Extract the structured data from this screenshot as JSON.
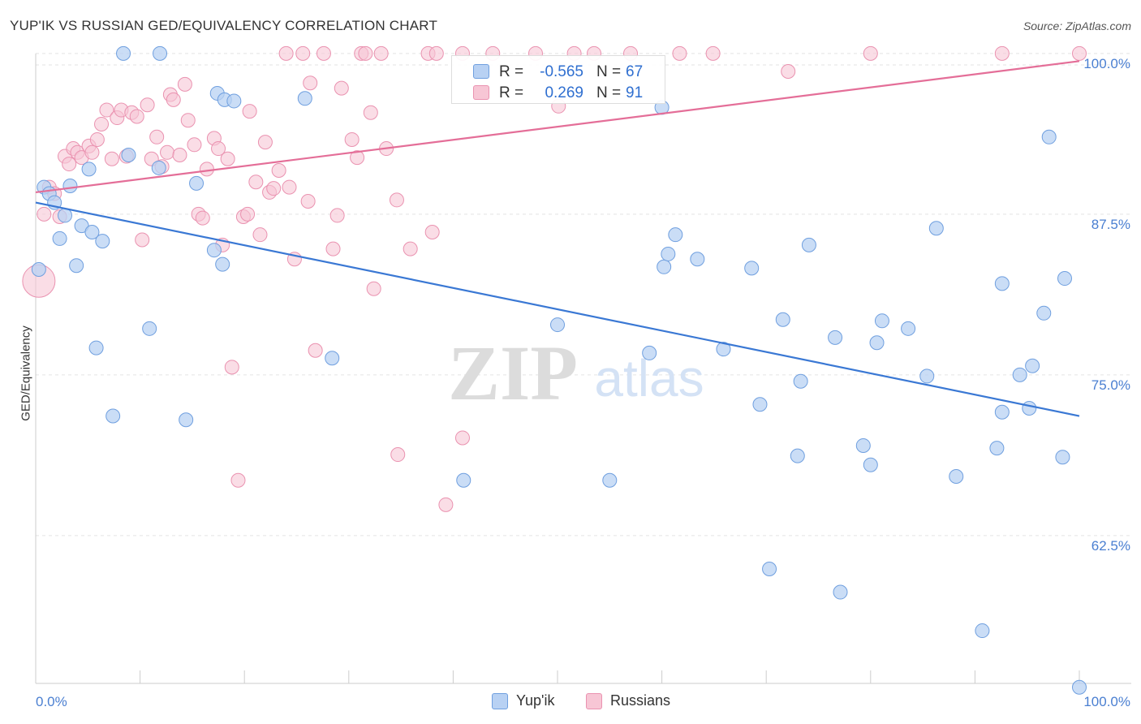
{
  "header": {
    "title": "YUP'IK VS RUSSIAN GED/EQUIVALENCY CORRELATION CHART",
    "source": "Source: ZipAtlas.com"
  },
  "legend": {
    "r_label": "R =",
    "n_label": "N =",
    "rows": [
      {
        "r": "-0.565",
        "n": "67"
      },
      {
        "r": "0.269",
        "n": "91"
      }
    ]
  },
  "colors": {
    "yupik_fill": "#b8d1f3",
    "yupik_stroke": "#6f9fdf",
    "yupik_line": "#3a78d4",
    "russian_fill": "#f7c6d5",
    "russian_stroke": "#ea92b0",
    "russian_line": "#e46e98",
    "tick_label": "#4a7fd1",
    "grid": "#e3e3e3",
    "watermark": "#dcdcdc"
  },
  "watermark": {
    "zip": "ZIP",
    "atlas": "atlas"
  },
  "chart_data": {
    "type": "scatter",
    "title": "YUP'IK VS RUSSIAN GED/EQUIVALENCY CORRELATION CHART",
    "xlabel": "",
    "ylabel": "GED/Equivalency",
    "xlim": [
      0,
      100
    ],
    "ylim": [
      51,
      101
    ],
    "x_tick_labels": [
      "0.0%",
      "100.0%"
    ],
    "y_ticks": [
      62.5,
      75.0,
      87.5,
      100.0
    ],
    "y_tick_labels": [
      "62.5%",
      "75.0%",
      "87.5%",
      "100.0%"
    ],
    "grid": "horizontal dashed",
    "legend_position": "top-center",
    "series": [
      {
        "name": "Yup'ik",
        "color": "#b8d1f3",
        "trend": {
          "x": [
            0,
            100
          ],
          "y": [
            88.4,
            71.8
          ]
        },
        "points": [
          {
            "x": 0.3,
            "y": 83.2
          },
          {
            "x": 0.8,
            "y": 89.6
          },
          {
            "x": 1.3,
            "y": 89.1
          },
          {
            "x": 1.8,
            "y": 88.4
          },
          {
            "x": 2.3,
            "y": 85.6
          },
          {
            "x": 2.8,
            "y": 87.4
          },
          {
            "x": 3.3,
            "y": 89.7
          },
          {
            "x": 3.9,
            "y": 83.5
          },
          {
            "x": 4.4,
            "y": 86.6
          },
          {
            "x": 5.1,
            "y": 91.0
          },
          {
            "x": 5.4,
            "y": 86.1
          },
          {
            "x": 5.8,
            "y": 77.1
          },
          {
            "x": 6.4,
            "y": 85.4
          },
          {
            "x": 7.4,
            "y": 71.8
          },
          {
            "x": 8.4,
            "y": 100.0
          },
          {
            "x": 8.9,
            "y": 92.1
          },
          {
            "x": 10.9,
            "y": 78.6
          },
          {
            "x": 11.9,
            "y": 100.0
          },
          {
            "x": 11.8,
            "y": 91.1
          },
          {
            "x": 14.4,
            "y": 71.5
          },
          {
            "x": 15.4,
            "y": 89.9
          },
          {
            "x": 17.1,
            "y": 84.7
          },
          {
            "x": 17.4,
            "y": 96.9
          },
          {
            "x": 17.9,
            "y": 83.6
          },
          {
            "x": 18.1,
            "y": 96.4
          },
          {
            "x": 19.0,
            "y": 96.3
          },
          {
            "x": 25.8,
            "y": 96.5
          },
          {
            "x": 28.4,
            "y": 76.3
          },
          {
            "x": 41.0,
            "y": 66.8
          },
          {
            "x": 50.0,
            "y": 78.9
          },
          {
            "x": 55.0,
            "y": 66.8
          },
          {
            "x": 58.8,
            "y": 76.7
          },
          {
            "x": 60.0,
            "y": 95.8
          },
          {
            "x": 60.2,
            "y": 83.4
          },
          {
            "x": 60.6,
            "y": 84.4
          },
          {
            "x": 61.3,
            "y": 85.9
          },
          {
            "x": 63.4,
            "y": 84.0
          },
          {
            "x": 65.9,
            "y": 77.0
          },
          {
            "x": 68.6,
            "y": 83.3
          },
          {
            "x": 69.4,
            "y": 72.7
          },
          {
            "x": 70.3,
            "y": 59.9
          },
          {
            "x": 71.6,
            "y": 79.3
          },
          {
            "x": 73.0,
            "y": 68.7
          },
          {
            "x": 73.3,
            "y": 74.5
          },
          {
            "x": 74.1,
            "y": 85.1
          },
          {
            "x": 76.6,
            "y": 77.9
          },
          {
            "x": 77.1,
            "y": 58.1
          },
          {
            "x": 79.3,
            "y": 69.5
          },
          {
            "x": 80.0,
            "y": 68.0
          },
          {
            "x": 80.6,
            "y": 77.5
          },
          {
            "x": 81.1,
            "y": 79.2
          },
          {
            "x": 83.6,
            "y": 78.6
          },
          {
            "x": 85.4,
            "y": 74.9
          },
          {
            "x": 86.3,
            "y": 86.4
          },
          {
            "x": 88.2,
            "y": 67.1
          },
          {
            "x": 90.7,
            "y": 55.1
          },
          {
            "x": 92.1,
            "y": 69.3
          },
          {
            "x": 92.6,
            "y": 72.1
          },
          {
            "x": 92.6,
            "y": 82.1
          },
          {
            "x": 94.3,
            "y": 75.0
          },
          {
            "x": 95.2,
            "y": 72.4
          },
          {
            "x": 95.5,
            "y": 75.7
          },
          {
            "x": 96.6,
            "y": 79.8
          },
          {
            "x": 97.1,
            "y": 93.5
          },
          {
            "x": 98.4,
            "y": 68.6
          },
          {
            "x": 98.6,
            "y": 82.5
          },
          {
            "x": 100.0,
            "y": 50.7
          }
        ]
      },
      {
        "name": "Russians",
        "color": "#f7c6d5",
        "trend": {
          "x": [
            0,
            100
          ],
          "y": [
            89.2,
            99.4
          ]
        },
        "points": [
          {
            "x": 0.3,
            "y": 82.3
          },
          {
            "x": 0.8,
            "y": 87.5
          },
          {
            "x": 1.3,
            "y": 89.6
          },
          {
            "x": 1.8,
            "y": 89.1
          },
          {
            "x": 2.3,
            "y": 87.3
          },
          {
            "x": 2.8,
            "y": 92.0
          },
          {
            "x": 3.2,
            "y": 91.4
          },
          {
            "x": 3.6,
            "y": 92.6
          },
          {
            "x": 4.0,
            "y": 92.3
          },
          {
            "x": 4.4,
            "y": 91.9
          },
          {
            "x": 5.1,
            "y": 92.8
          },
          {
            "x": 5.4,
            "y": 92.3
          },
          {
            "x": 5.9,
            "y": 93.3
          },
          {
            "x": 6.3,
            "y": 94.5
          },
          {
            "x": 6.8,
            "y": 95.6
          },
          {
            "x": 7.3,
            "y": 91.8
          },
          {
            "x": 7.8,
            "y": 95.0
          },
          {
            "x": 8.2,
            "y": 95.6
          },
          {
            "x": 8.7,
            "y": 92.0
          },
          {
            "x": 9.2,
            "y": 95.4
          },
          {
            "x": 9.7,
            "y": 95.1
          },
          {
            "x": 10.2,
            "y": 85.5
          },
          {
            "x": 10.7,
            "y": 96.0
          },
          {
            "x": 11.1,
            "y": 91.8
          },
          {
            "x": 11.6,
            "y": 93.5
          },
          {
            "x": 12.1,
            "y": 91.2
          },
          {
            "x": 12.6,
            "y": 92.3
          },
          {
            "x": 12.9,
            "y": 96.8
          },
          {
            "x": 13.2,
            "y": 96.4
          },
          {
            "x": 13.8,
            "y": 92.1
          },
          {
            "x": 14.3,
            "y": 97.6
          },
          {
            "x": 14.6,
            "y": 94.8
          },
          {
            "x": 15.2,
            "y": 92.9
          },
          {
            "x": 15.6,
            "y": 87.5
          },
          {
            "x": 16.0,
            "y": 87.2
          },
          {
            "x": 16.4,
            "y": 91.0
          },
          {
            "x": 17.1,
            "y": 93.4
          },
          {
            "x": 17.5,
            "y": 92.6
          },
          {
            "x": 17.9,
            "y": 85.1
          },
          {
            "x": 18.4,
            "y": 91.8
          },
          {
            "x": 18.8,
            "y": 75.6
          },
          {
            "x": 19.4,
            "y": 66.8
          },
          {
            "x": 19.9,
            "y": 87.3
          },
          {
            "x": 20.3,
            "y": 87.5
          },
          {
            "x": 20.5,
            "y": 95.5
          },
          {
            "x": 21.1,
            "y": 90.0
          },
          {
            "x": 21.5,
            "y": 85.9
          },
          {
            "x": 22.0,
            "y": 93.1
          },
          {
            "x": 22.4,
            "y": 89.2
          },
          {
            "x": 22.8,
            "y": 89.5
          },
          {
            "x": 23.3,
            "y": 90.9
          },
          {
            "x": 24.0,
            "y": 100.0
          },
          {
            "x": 24.3,
            "y": 89.6
          },
          {
            "x": 24.8,
            "y": 84.0
          },
          {
            "x": 25.6,
            "y": 100.0
          },
          {
            "x": 26.1,
            "y": 88.5
          },
          {
            "x": 26.3,
            "y": 97.7
          },
          {
            "x": 26.8,
            "y": 76.9
          },
          {
            "x": 27.6,
            "y": 100.0
          },
          {
            "x": 28.5,
            "y": 84.8
          },
          {
            "x": 28.9,
            "y": 87.4
          },
          {
            "x": 29.3,
            "y": 97.3
          },
          {
            "x": 30.3,
            "y": 93.3
          },
          {
            "x": 30.8,
            "y": 91.9
          },
          {
            "x": 31.2,
            "y": 100.0
          },
          {
            "x": 31.6,
            "y": 100.0
          },
          {
            "x": 32.1,
            "y": 95.4
          },
          {
            "x": 32.4,
            "y": 81.7
          },
          {
            "x": 33.1,
            "y": 100.0
          },
          {
            "x": 33.6,
            "y": 92.6
          },
          {
            "x": 34.6,
            "y": 88.6
          },
          {
            "x": 34.7,
            "y": 68.8
          },
          {
            "x": 35.9,
            "y": 84.8
          },
          {
            "x": 37.6,
            "y": 100.0
          },
          {
            "x": 38.0,
            "y": 86.1
          },
          {
            "x": 39.3,
            "y": 64.9
          },
          {
            "x": 40.9,
            "y": 70.1
          },
          {
            "x": 43.8,
            "y": 100.0
          },
          {
            "x": 47.9,
            "y": 100.0
          },
          {
            "x": 50.1,
            "y": 95.9
          },
          {
            "x": 51.6,
            "y": 100.0
          },
          {
            "x": 57.0,
            "y": 100.0
          },
          {
            "x": 61.7,
            "y": 100.0
          },
          {
            "x": 64.9,
            "y": 100.0
          },
          {
            "x": 72.1,
            "y": 98.6
          },
          {
            "x": 80.0,
            "y": 100.0
          },
          {
            "x": 92.6,
            "y": 100.0
          },
          {
            "x": 100.0,
            "y": 100.0
          },
          {
            "x": 40.9,
            "y": 100.0
          },
          {
            "x": 53.5,
            "y": 100.0
          },
          {
            "x": 38.4,
            "y": 100.0
          }
        ]
      }
    ]
  }
}
